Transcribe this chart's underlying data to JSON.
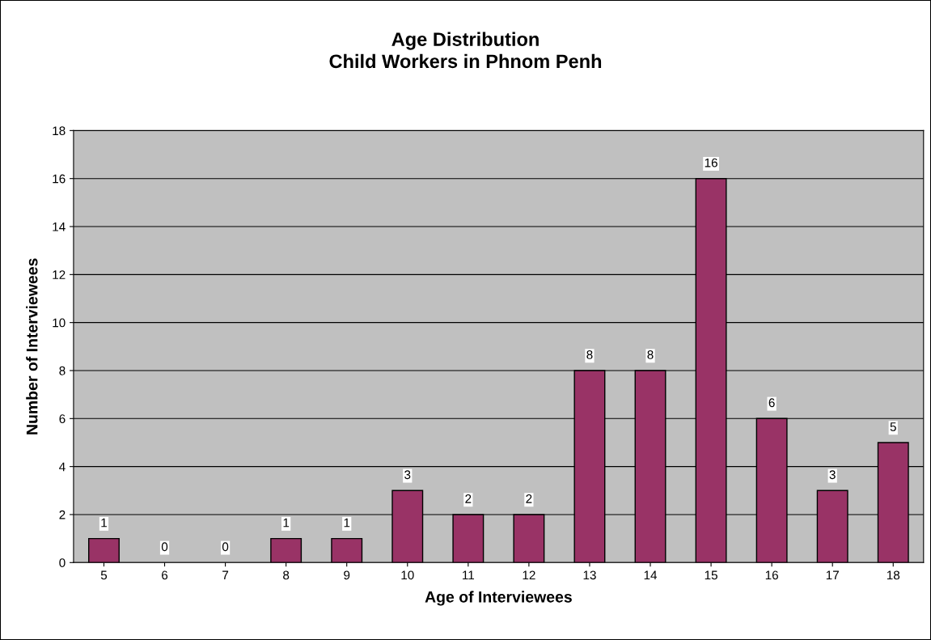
{
  "chart_data": {
    "type": "bar",
    "title": "Age Distribution\nChild Workers in Phnom Penh",
    "xlabel": "Age of Interviewees",
    "ylabel": "Number of Interviewees",
    "categories": [
      "5",
      "6",
      "7",
      "8",
      "9",
      "10",
      "11",
      "12",
      "13",
      "14",
      "15",
      "16",
      "17",
      "18"
    ],
    "values": [
      1,
      0,
      0,
      1,
      1,
      3,
      2,
      2,
      8,
      8,
      16,
      6,
      3,
      5
    ],
    "color": "#993366",
    "ylim": [
      0,
      18
    ],
    "yticks": [
      0,
      2,
      4,
      6,
      8,
      10,
      12,
      14,
      16,
      18
    ],
    "grid": "y",
    "data_labels": true
  }
}
